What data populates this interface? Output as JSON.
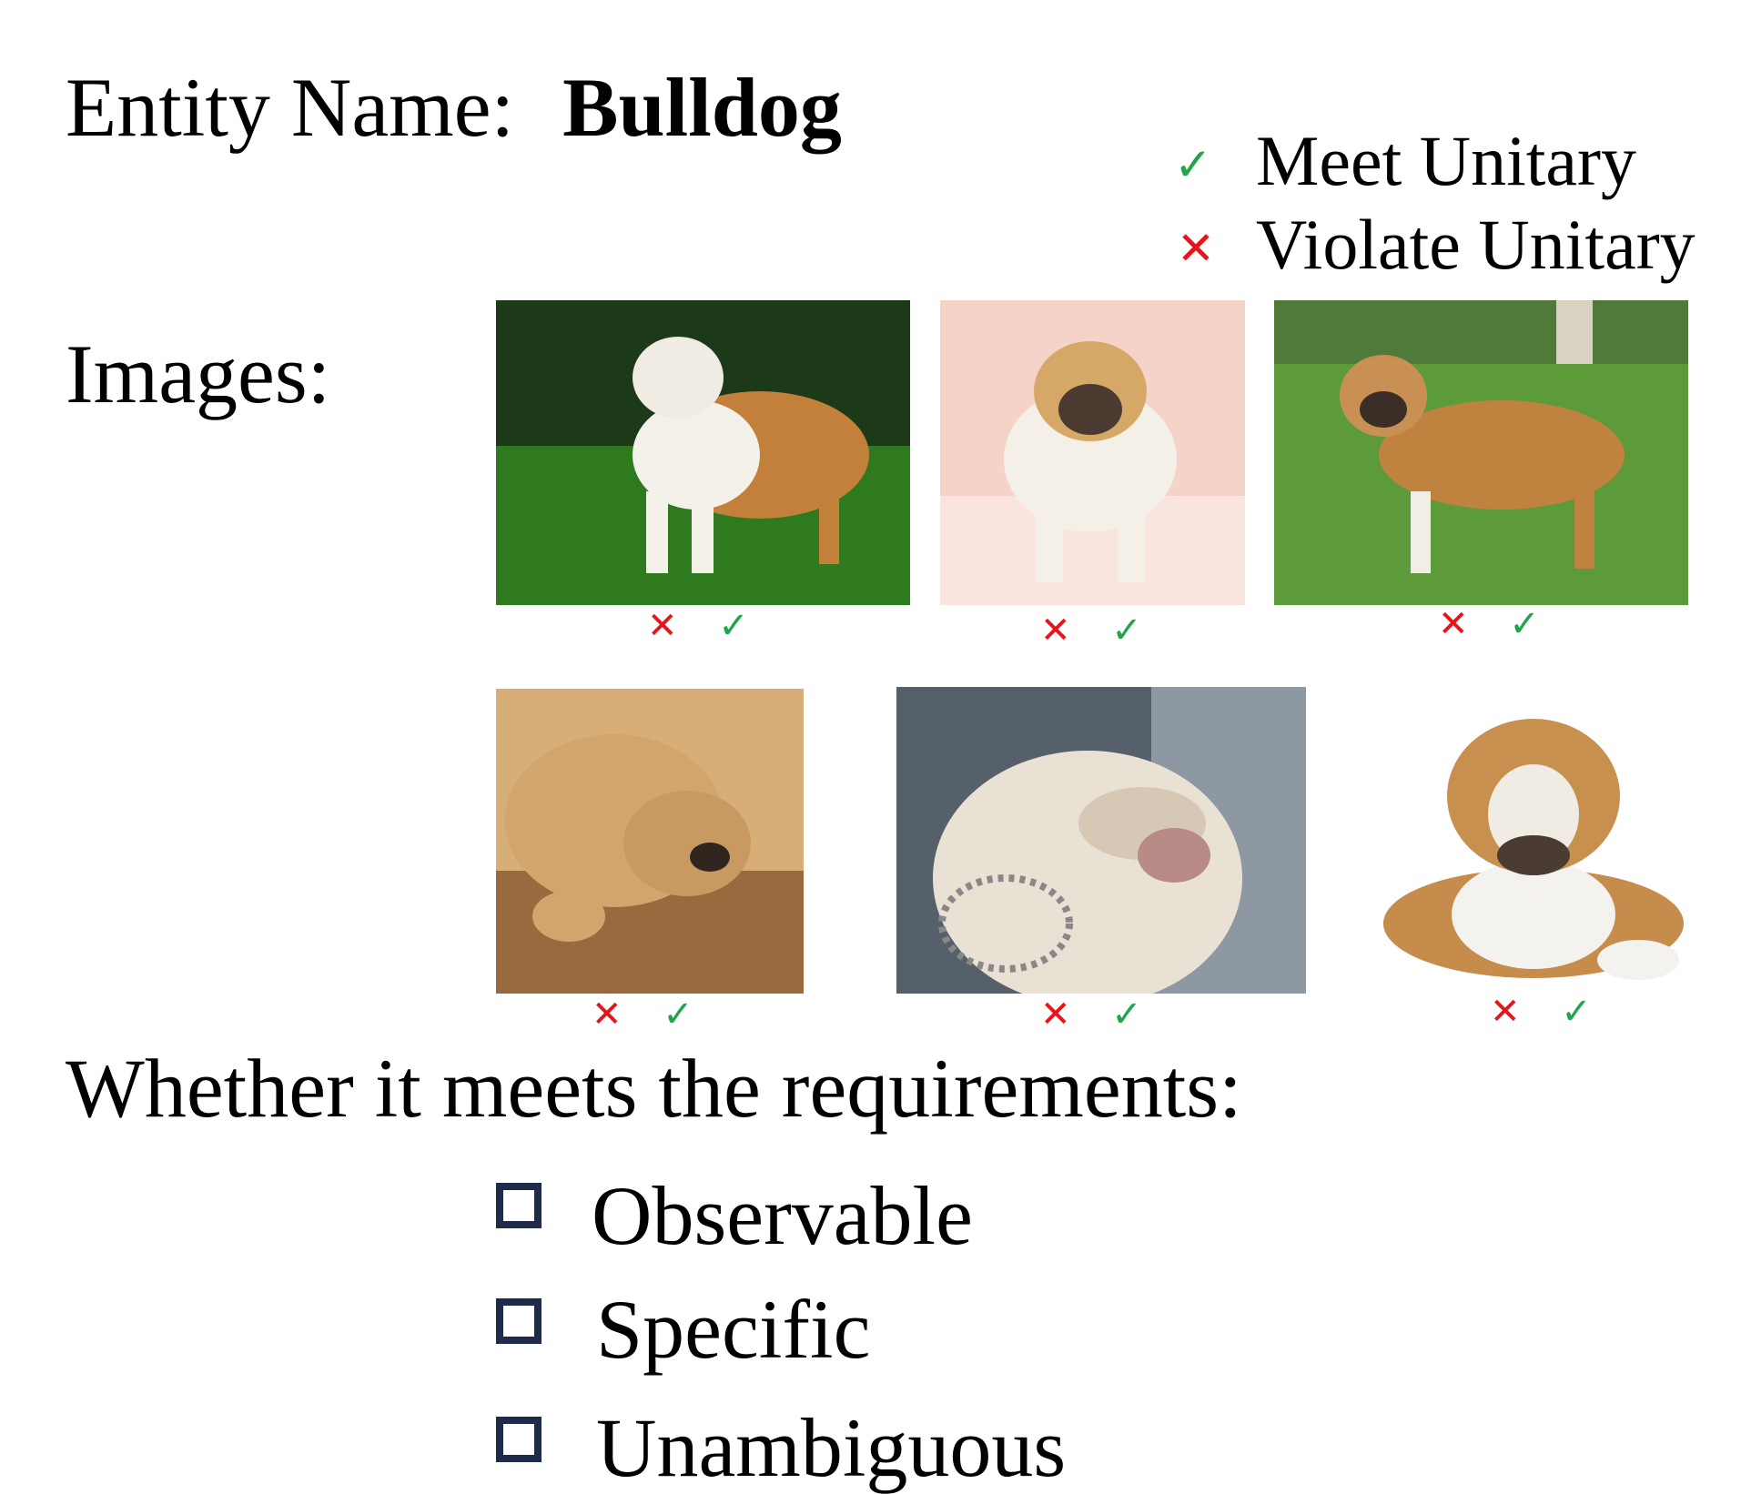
{
  "entity": {
    "label": "Entity Name:",
    "name": "Bulldog"
  },
  "legend": [
    {
      "icon": "check-icon",
      "symbol": "✓",
      "label": "Meet Unitary",
      "color": "#1fa64a"
    },
    {
      "icon": "cross-icon",
      "symbol": "✕",
      "label": "Violate Unitary",
      "color": "#e8141c"
    }
  ],
  "images_label": "Images:",
  "image_marks": {
    "cross": "✕",
    "check": "✓"
  },
  "images": [
    {
      "alt": "bulldog-standing-on-grass-dark-background"
    },
    {
      "alt": "bulldog-standing-on-pink-background"
    },
    {
      "alt": "bulldog-with-collar-on-lawn"
    },
    {
      "alt": "puppy-lying-on-wooden-floor"
    },
    {
      "alt": "white-bulldog-with-chain-collar"
    },
    {
      "alt": "bulldog-lying-white-background"
    }
  ],
  "requirements_heading": "Whether it meets the requirements:",
  "requirements": [
    {
      "label": "Observable"
    },
    {
      "label": "Specific"
    },
    {
      "label": "Unambiguous"
    }
  ]
}
